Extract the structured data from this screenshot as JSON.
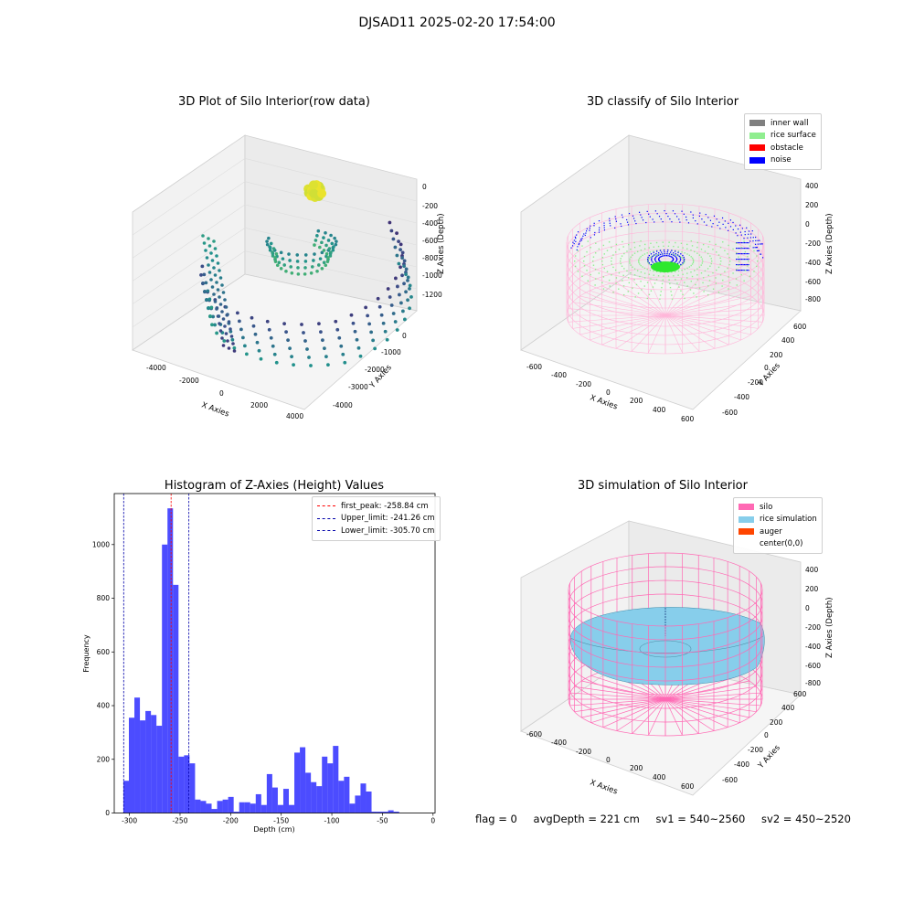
{
  "suptitle": "DJSAD11 2025-02-20 17:54:00",
  "colors": {
    "inner_wall": "#808080",
    "rice_surface": "#90ee90",
    "obstacle": "#ff0000",
    "noise": "#0000ff",
    "silo": "#ff69b4",
    "rice_sim": "#87ceeb",
    "auger": "#ff4500",
    "hist_bar": "#0000ff"
  },
  "status": {
    "flag": "flag = 0",
    "avg_depth": "avgDepth = 221 cm",
    "sv1": "sv1 = 540~2560",
    "sv2": "sv2 = 450~2520"
  },
  "chart_data": [
    {
      "type": "scatter",
      "title": "3D Plot of Silo Interior(row data)",
      "xlabel": "X Axies",
      "ylabel": "Y Axies",
      "zlabel": "Z Axies (Depth)",
      "x_ticks": [
        "-4000",
        "-2000",
        "0",
        "2000",
        "4000"
      ],
      "y_ticks": [
        "-4000",
        "-3000",
        "-2000",
        "-1000",
        "0"
      ],
      "z_ticks": [
        "0",
        "-200",
        "-400",
        "-600",
        "-800",
        "-1000",
        "-1200"
      ],
      "xlim": [
        -4500,
        4500
      ],
      "ylim": [
        -4500,
        500
      ],
      "zlim": [
        -1400,
        100
      ]
    },
    {
      "type": "scatter",
      "title": "3D classify of Silo Interior",
      "xlabel": "X Axies",
      "ylabel": "Y Axies",
      "zlabel": "Z Axies (Depth)",
      "x_ticks": [
        "-600",
        "-400",
        "-200",
        "0",
        "200",
        "400",
        "600"
      ],
      "y_ticks": [
        "-600",
        "-400",
        "-200",
        "0",
        "200",
        "400",
        "600"
      ],
      "z_ticks": [
        "400",
        "200",
        "0",
        "-200",
        "-400",
        "-600",
        "-800"
      ],
      "legend": [
        "inner wall",
        "rice surface",
        "obstacle",
        "noise"
      ],
      "legend_loc": "upper right"
    },
    {
      "type": "bar",
      "title": "Histogram of Z-Axies (Height) Values",
      "xlabel": "Depth (cm)",
      "ylabel": "Frequency",
      "x_ticks": [
        "-300",
        "-250",
        "-200",
        "-150",
        "-100",
        "-50",
        "0"
      ],
      "y_ticks": [
        "0",
        "200",
        "400",
        "600",
        "800",
        "1000"
      ],
      "xlim": [
        -315,
        2
      ],
      "ylim": [
        0,
        1190
      ],
      "bin_start": -306,
      "bin_width": 5.45,
      "values": [
        120,
        355,
        430,
        345,
        380,
        365,
        325,
        1000,
        1135,
        850,
        210,
        215,
        185,
        50,
        45,
        35,
        15,
        45,
        50,
        60,
        5,
        40,
        40,
        35,
        70,
        30,
        145,
        95,
        30,
        90,
        30,
        225,
        245,
        150,
        115,
        100,
        210,
        185,
        250,
        120,
        135,
        35,
        65,
        110,
        80,
        5,
        5,
        5,
        10,
        5
      ],
      "vlines": [
        {
          "x": -258.84,
          "label": "first_peak: -258.84 cm",
          "color": "#ff0000"
        },
        {
          "x": -241.26,
          "label": "Upper_limit: -241.26 cm",
          "color": "#0000aa"
        },
        {
          "x": -305.7,
          "label": "Lower_limit: -305.70 cm",
          "color": "#0000aa"
        }
      ],
      "legend_loc": "upper right"
    },
    {
      "type": "surface",
      "title": "3D simulation of Silo Interior",
      "xlabel": "X Axies",
      "ylabel": "Y Axies",
      "zlabel": "Z Axies (Depth)",
      "x_ticks": [
        "-600",
        "-400",
        "-200",
        "0",
        "200",
        "400",
        "600"
      ],
      "y_ticks": [
        "-600",
        "-400",
        "-200",
        "0",
        "200",
        "400",
        "600"
      ],
      "z_ticks": [
        "400",
        "200",
        "0",
        "-200",
        "-400",
        "-600",
        "-800"
      ],
      "legend": [
        "silo",
        "rice simulation",
        "auger",
        "center(0,0)"
      ],
      "legend_loc": "upper right"
    }
  ]
}
